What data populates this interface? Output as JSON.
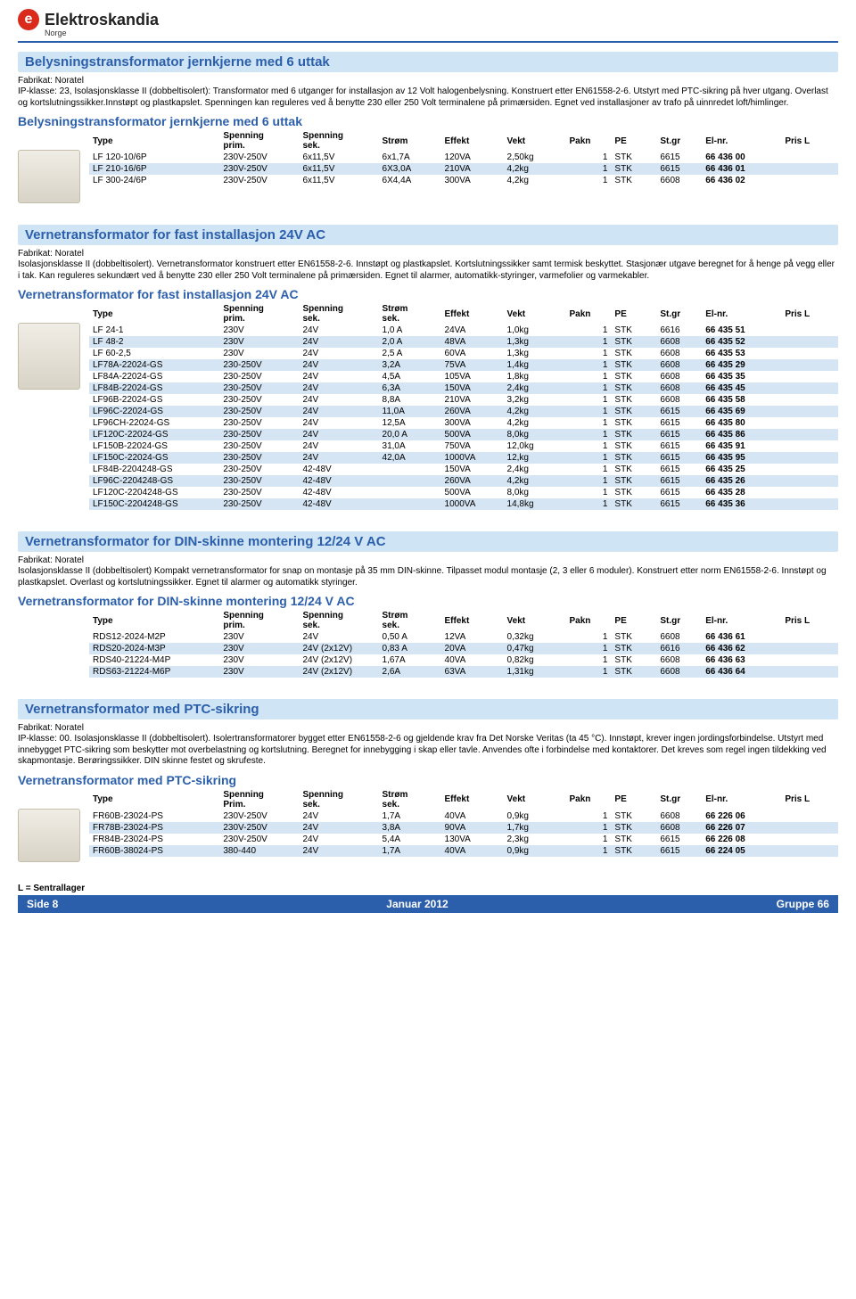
{
  "header": {
    "brand": "Elektroskandia",
    "country": "Norge"
  },
  "sections": [
    {
      "title": "Belysningstransformator jernkjerne med 6 uttak",
      "fabrikat": "Fabrikat: Noratel",
      "desc": "IP-klasse: 23,  Isolasjonsklasse II (dobbeltisolert): Transformator med 6 utganger for installasjon av 12 Volt halogenbelysning. Konstruert etter EN61558-2-6. Utstyrt med PTC-sikring på hver utgang. Overlast og kortslutningssikker.Innstøpt og plastkapslet. Spenningen kan reguleres ved å benytte 230 eller 250 Volt terminalene på primærsiden. Egnet ved installasjoner av trafo på uinnredet loft/himlinger.",
      "subheading": "Belysningstransformator jernkjerne med 6 uttak",
      "headers": [
        "Type",
        "Spenning prim.",
        "Spenning sek.",
        "Strøm",
        "Effekt",
        "Vekt",
        "Pakn",
        "PE",
        "St.gr",
        "El-nr.",
        "Pris L"
      ],
      "rows": [
        [
          "LF 120-10/6P",
          "230V-250V",
          "6x11,5V",
          "6x1,7A",
          "120VA",
          "2,50kg",
          "1",
          "STK",
          "6615",
          "66 436 00",
          ""
        ],
        [
          "LF 210-16/6P",
          "230V-250V",
          "6x11,5V",
          "6X3,0A",
          "210VA",
          "4,2kg",
          "1",
          "STK",
          "6615",
          "66 436 01",
          ""
        ],
        [
          "LF 300-24/6P",
          "230V-250V",
          "6x11,5V",
          "6X4,4A",
          "300VA",
          "4,2kg",
          "1",
          "STK",
          "6608",
          "66 436 02",
          ""
        ]
      ],
      "has_strom_sek": false
    },
    {
      "title": "Vernetransformator for fast installasjon 24V AC",
      "fabrikat": "Fabrikat: Noratel",
      "desc": "Isolasjonsklasse II (dobbeltisolert). Vernetransformator konstruert etter EN61558-2-6. Innstøpt og plastkapslet. Kortslutningssikker samt termisk beskyttet. Stasjonær utgave beregnet for å henge på vegg eller i tak. Kan reguleres sekundært ved å benytte 230 eller 250 Volt terminalene på primærsiden. Egnet til alarmer, automatikk-styringer, varmefolier og varmekabler.",
      "subheading": "Vernetransformator for fast installasjon 24V AC",
      "headers": [
        "Type",
        "Spenning prim.",
        "Spenning sek.",
        "Strøm sek.",
        "Effekt",
        "Vekt",
        "Pakn",
        "PE",
        "St.gr",
        "El-nr.",
        "Pris L"
      ],
      "rows": [
        [
          "LF 24-1",
          "230V",
          "24V",
          "1,0 A",
          "24VA",
          "1,0kg",
          "1",
          "STK",
          "6616",
          "66 435 51",
          ""
        ],
        [
          "LF 48-2",
          "230V",
          "24V",
          "2,0 A",
          "48VA",
          "1,3kg",
          "1",
          "STK",
          "6608",
          "66 435 52",
          ""
        ],
        [
          "LF 60-2,5",
          "230V",
          "24V",
          "2,5 A",
          "60VA",
          "1,3kg",
          "1",
          "STK",
          "6608",
          "66 435 53",
          ""
        ],
        [
          "LF78A-22024-GS",
          "230-250V",
          "24V",
          "3,2A",
          "75VA",
          "1,4kg",
          "1",
          "STK",
          "6608",
          "66 435 29",
          ""
        ],
        [
          "LF84A-22024-GS",
          "230-250V",
          "24V",
          "4,5A",
          "105VA",
          "1,8kg",
          "1",
          "STK",
          "6608",
          "66 435 35",
          ""
        ],
        [
          "LF84B-22024-GS",
          "230-250V",
          "24V",
          "6,3A",
          "150VA",
          "2,4kg",
          "1",
          "STK",
          "6608",
          "66 435 45",
          ""
        ],
        [
          "LF96B-22024-GS",
          "230-250V",
          "24V",
          "8,8A",
          "210VA",
          "3,2kg",
          "1",
          "STK",
          "6608",
          "66 435 58",
          ""
        ],
        [
          "LF96C-22024-GS",
          "230-250V",
          "24V",
          "11,0A",
          "260VA",
          "4,2kg",
          "1",
          "STK",
          "6615",
          "66 435 69",
          ""
        ],
        [
          "LF96CH-22024-GS",
          "230-250V",
          "24V",
          "12,5A",
          "300VA",
          "4,2kg",
          "1",
          "STK",
          "6615",
          "66 435 80",
          ""
        ],
        [
          "LF120C-22024-GS",
          "230-250V",
          "24V",
          "20,0 A",
          "500VA",
          "8,0kg",
          "1",
          "STK",
          "6615",
          "66 435 86",
          ""
        ],
        [
          "LF150B-22024-GS",
          "230-250V",
          "24V",
          "31,0A",
          "750VA",
          "12,0kg",
          "1",
          "STK",
          "6615",
          "66 435 91",
          ""
        ],
        [
          "LF150C-22024-GS",
          "230-250V",
          "24V",
          "42,0A",
          "1000VA",
          "12,kg",
          "1",
          "STK",
          "6615",
          "66 435 95",
          ""
        ],
        [
          "LF84B-2204248-GS",
          "230-250V",
          "42-48V",
          "",
          "150VA",
          "2,4kg",
          "1",
          "STK",
          "6615",
          "66 435 25",
          ""
        ],
        [
          "LF96C-2204248-GS",
          "230-250V",
          "42-48V",
          "",
          "260VA",
          "4,2kg",
          "1",
          "STK",
          "6615",
          "66 435 26",
          ""
        ],
        [
          "LF120C-2204248-GS",
          "230-250V",
          "42-48V",
          "",
          "500VA",
          "8,0kg",
          "1",
          "STK",
          "6615",
          "66 435 28",
          ""
        ],
        [
          "LF150C-2204248-GS",
          "230-250V",
          "42-48V",
          "",
          "1000VA",
          "14,8kg",
          "1",
          "STK",
          "6615",
          "66 435 36",
          ""
        ]
      ],
      "has_strom_sek": true
    },
    {
      "title": "Vernetransformator for DIN-skinne montering 12/24 V AC",
      "fabrikat": "Fabrikat: Noratel",
      "desc": "Isolasjonsklasse II (dobbeltisolert)\nKompakt vernetransformator for snap on montasje på 35 mm DIN-skinne. Tilpasset modul montasje (2, 3 eller 6 moduler). Konstruert etter norm EN61558-2-6. Innstøpt og plastkapslet. Overlast og kortslutningssikker. Egnet til alarmer og automatikk styringer.",
      "subheading": "Vernetransformator for DIN-skinne montering 12/24 V AC",
      "headers": [
        "Type",
        "Spenning prim.",
        "Spenning sek.",
        "Strøm sek.",
        "Effekt",
        "Vekt",
        "Pakn",
        "PE",
        "St.gr",
        "El-nr.",
        "Pris L"
      ],
      "rows": [
        [
          "RDS12-2024-M2P",
          "230V",
          "24V",
          "0,50 A",
          "12VA",
          "0,32kg",
          "1",
          "STK",
          "6608",
          "66 436 61",
          ""
        ],
        [
          "RDS20-2024-M3P",
          "230V",
          "24V (2x12V)",
          "0,83 A",
          "20VA",
          "0,47kg",
          "1",
          "STK",
          "6616",
          "66 436 62",
          ""
        ],
        [
          "RDS40-21224-M4P",
          "230V",
          "24V (2x12V)",
          "1,67A",
          "40VA",
          "0,82kg",
          "1",
          "STK",
          "6608",
          "66 436 63",
          ""
        ],
        [
          "RDS63-21224-M6P",
          "230V",
          "24V (2x12V)",
          "2,6A",
          "63VA",
          "1,31kg",
          "1",
          "STK",
          "6608",
          "66 436 64",
          ""
        ]
      ],
      "has_strom_sek": true,
      "no_image": true
    },
    {
      "title": "Vernetransformator med PTC-sikring",
      "fabrikat": "Fabrikat: Noratel",
      "desc": "IP-klasse: 00. Isolasjonsklasse II (dobbeltisolert). Isolertransformatorer bygget etter EN61558-2-6 og gjeldende krav fra Det Norske Veritas (ta 45 °C). Innstøpt, krever ingen jordingsforbindelse. Utstyrt med innebygget PTC-sikring som beskytter mot overbelastning og kortslutning. Beregnet for innebygging i skap eller tavle. Anvendes ofte i forbindelse med kontaktorer. Det kreves som regel ingen tildekking ved skapmontasje. Berøringssikker. DIN skinne festet og skrufeste.",
      "subheading": "Vernetransformator med PTC-sikring",
      "headers": [
        "Type",
        "Spenning Prim.",
        "Spenning sek.",
        "Strøm sek.",
        "Effekt",
        "Vekt",
        "Pakn",
        "PE",
        "St.gr",
        "El-nr.",
        "Pris L"
      ],
      "rows": [
        [
          "FR60B-23024-PS",
          "230V-250V",
          "24V",
          "1,7A",
          "40VA",
          "0,9kg",
          "1",
          "STK",
          "6608",
          "66 226 06",
          ""
        ],
        [
          "FR78B-23024-PS",
          "230V-250V",
          "24V",
          "3,8A",
          "90VA",
          "1,7kg",
          "1",
          "STK",
          "6608",
          "66 226 07",
          ""
        ],
        [
          "FR84B-23024-PS",
          "230V-250V",
          "24V",
          "5,4A",
          "130VA",
          "2,3kg",
          "1",
          "STK",
          "6615",
          "66 226 08",
          ""
        ],
        [
          "FR60B-38024-PS",
          "380-440",
          "24V",
          "1,7A",
          "40VA",
          "0,9kg",
          "1",
          "STK",
          "6615",
          "66 224 05",
          ""
        ]
      ],
      "has_strom_sek": true
    }
  ],
  "footer": {
    "note": "L = Sentrallager",
    "left": "Side  8",
    "center": "Januar 2012",
    "right": "Gruppe 66"
  },
  "colors": {
    "header_bg": "#cfe4f5",
    "header_fg": "#2b5fab",
    "alt_row": "#d5e5f3",
    "footer_bg": "#2b5fab",
    "logo_red": "#d92a1c"
  }
}
